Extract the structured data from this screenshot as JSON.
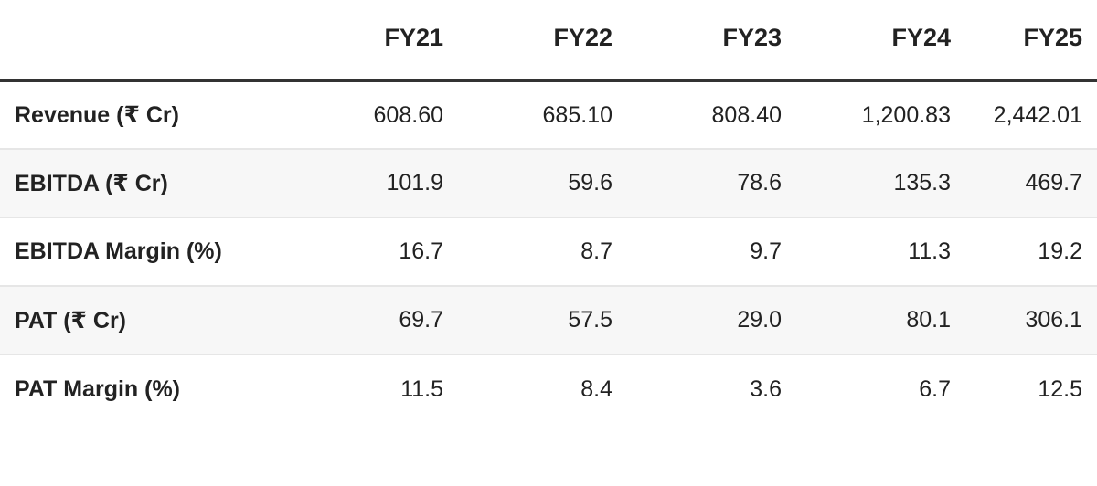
{
  "table": {
    "headers": [
      "",
      "FY21",
      "FY22",
      "FY23",
      "FY24",
      "FY25"
    ],
    "rows": [
      {
        "label": "Revenue (₹ Cr)",
        "values": [
          "608.60",
          "685.10",
          "808.40",
          "1,200.83",
          "2,442.01"
        ]
      },
      {
        "label": "EBITDA (₹ Cr)",
        "values": [
          "101.9",
          "59.6",
          "78.6",
          "135.3",
          "469.7"
        ]
      },
      {
        "label": "EBITDA Margin (%)",
        "values": [
          "16.7",
          "8.7",
          "9.7",
          "11.3",
          "19.2"
        ]
      },
      {
        "label": "PAT (₹ Cr)",
        "values": [
          "69.7",
          "57.5",
          "29.0",
          "80.1",
          "306.1"
        ]
      },
      {
        "label": "PAT Margin (%)",
        "values": [
          "11.5",
          "8.4",
          "3.6",
          "6.7",
          "12.5"
        ]
      }
    ]
  }
}
